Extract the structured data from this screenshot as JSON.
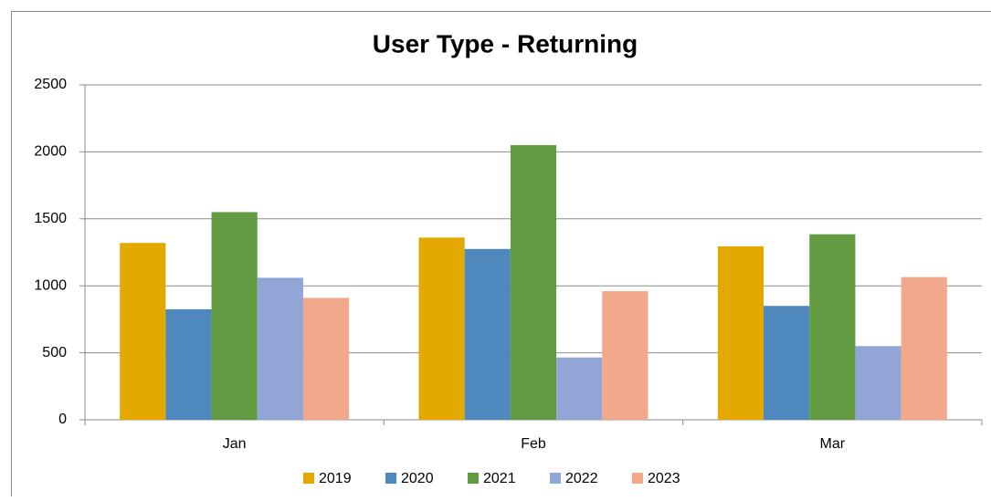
{
  "chart_data": {
    "type": "bar",
    "title": "User Type - Returning",
    "categories": [
      "Jan",
      "Feb",
      "Mar"
    ],
    "series": [
      {
        "name": "2019",
        "color": "#e3a900",
        "values": [
          1320,
          1360,
          1295
        ]
      },
      {
        "name": "2020",
        "color": "#4f88bd",
        "values": [
          825,
          1275,
          850
        ]
      },
      {
        "name": "2021",
        "color": "#629b41",
        "values": [
          1550,
          2050,
          1385
        ]
      },
      {
        "name": "2022",
        "color": "#91a5d6",
        "values": [
          1060,
          465,
          550
        ]
      },
      {
        "name": "2023",
        "color": "#f2a88b",
        "values": [
          910,
          960,
          1065
        ]
      }
    ],
    "ylim": [
      0,
      2500
    ],
    "yticks": [
      0,
      500,
      1000,
      1500,
      2000,
      2500
    ],
    "grid": true,
    "legend": "bottom"
  }
}
